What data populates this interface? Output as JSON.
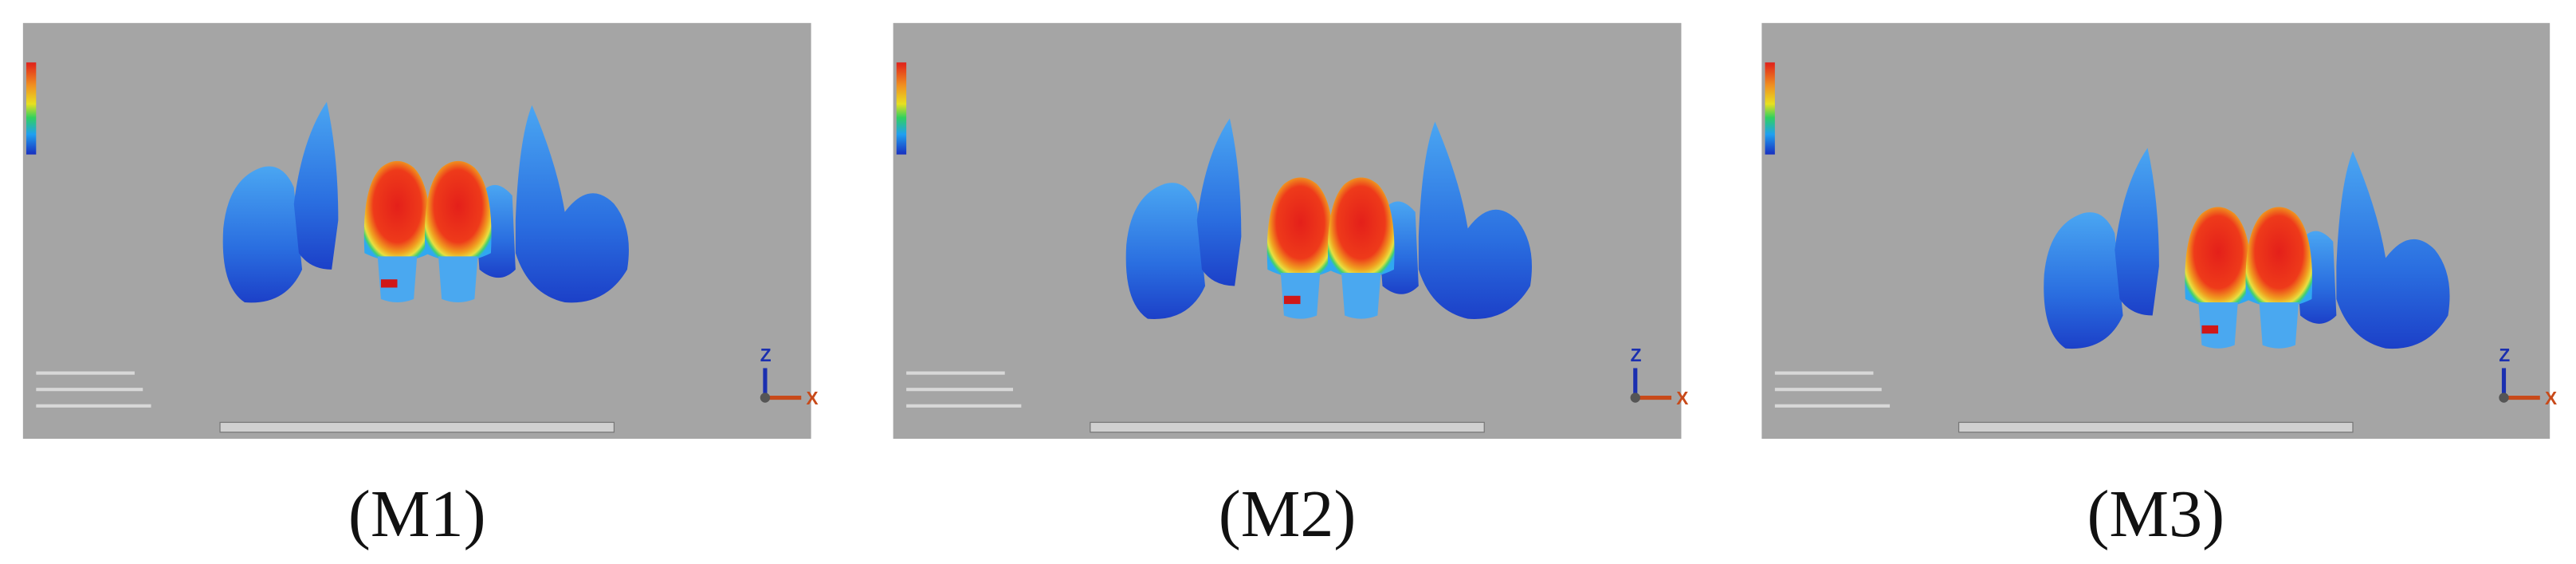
{
  "panels": [
    {
      "caption": "(M1)",
      "axis": {
        "z": "Z",
        "x": "X"
      }
    },
    {
      "caption": "(M2)",
      "axis": {
        "z": "Z",
        "x": "X"
      }
    },
    {
      "caption": "(M3)",
      "axis": {
        "z": "Z",
        "x": "X"
      }
    }
  ]
}
